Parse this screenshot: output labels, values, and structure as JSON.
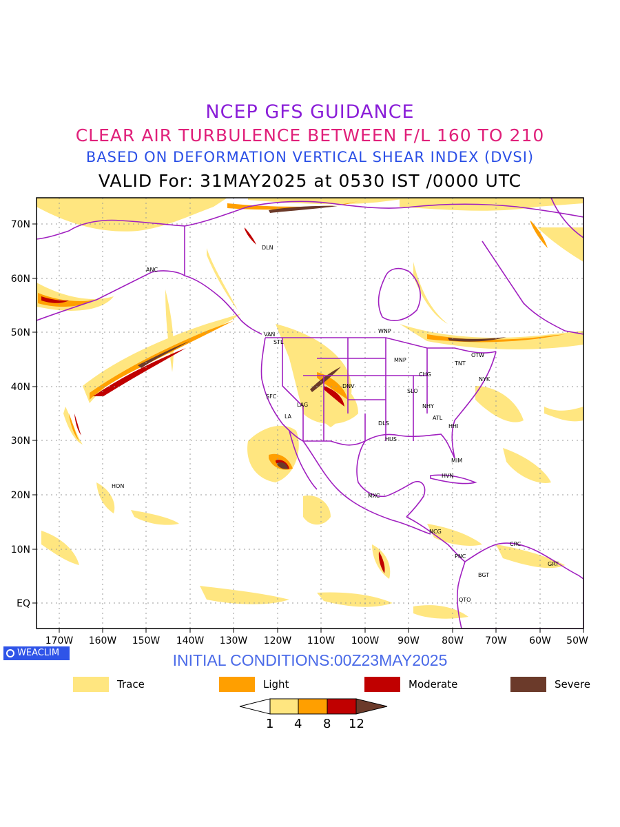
{
  "titles": {
    "line1": "NCEP GFS GUIDANCE",
    "line2": "CLEAR AIR TURBULENCE BETWEEN F/L 160 TO 210",
    "line3": "BASED ON DEFORMATION VERTICAL SHEAR INDEX (DVSI)",
    "line4": "VALID For: 31MAY2025 at 0530 IST /0000 UTC"
  },
  "lat_labels": [
    "70N",
    "60N",
    "50N",
    "40N",
    "30N",
    "20N",
    "10N",
    "EQ"
  ],
  "lon_labels": [
    "170W",
    "160W",
    "150W",
    "140W",
    "130W",
    "120W",
    "110W",
    "100W",
    "90W",
    "80W",
    "70W",
    "60W",
    "50W"
  ],
  "stations": [
    "DLN",
    "ANC",
    "VAN",
    "STL",
    "WNP",
    "MNP",
    "OTW",
    "TNT",
    "CHG",
    "NYK",
    "DNV",
    "SFC",
    "LAG",
    "LA",
    "SLO",
    "NHY",
    "ATL",
    "HHI",
    "DLS",
    "HUS",
    "MIM",
    "HVN",
    "HON",
    "MXC",
    "NCG",
    "CRC",
    "GRT",
    "PNC",
    "BGT",
    "QTO"
  ],
  "badge": "WEACLIM",
  "initial_conditions": "INITIAL CONDITIONS:00Z23MAY2025",
  "legend": [
    {
      "label": "Trace",
      "color": "#ffe680"
    },
    {
      "label": "Light",
      "color": "#ff9f00"
    },
    {
      "label": "Moderate",
      "color": "#c00000"
    },
    {
      "label": "Severe",
      "color": "#6b3a2a"
    }
  ],
  "colorbar_ticks": [
    "1",
    "4",
    "8",
    "12"
  ],
  "colors": {
    "trace": "#ffe680",
    "light": "#ff9f00",
    "moderate": "#c00000",
    "severe": "#6b3a2a",
    "boundary": "#a020c0",
    "grid": "#999999"
  }
}
